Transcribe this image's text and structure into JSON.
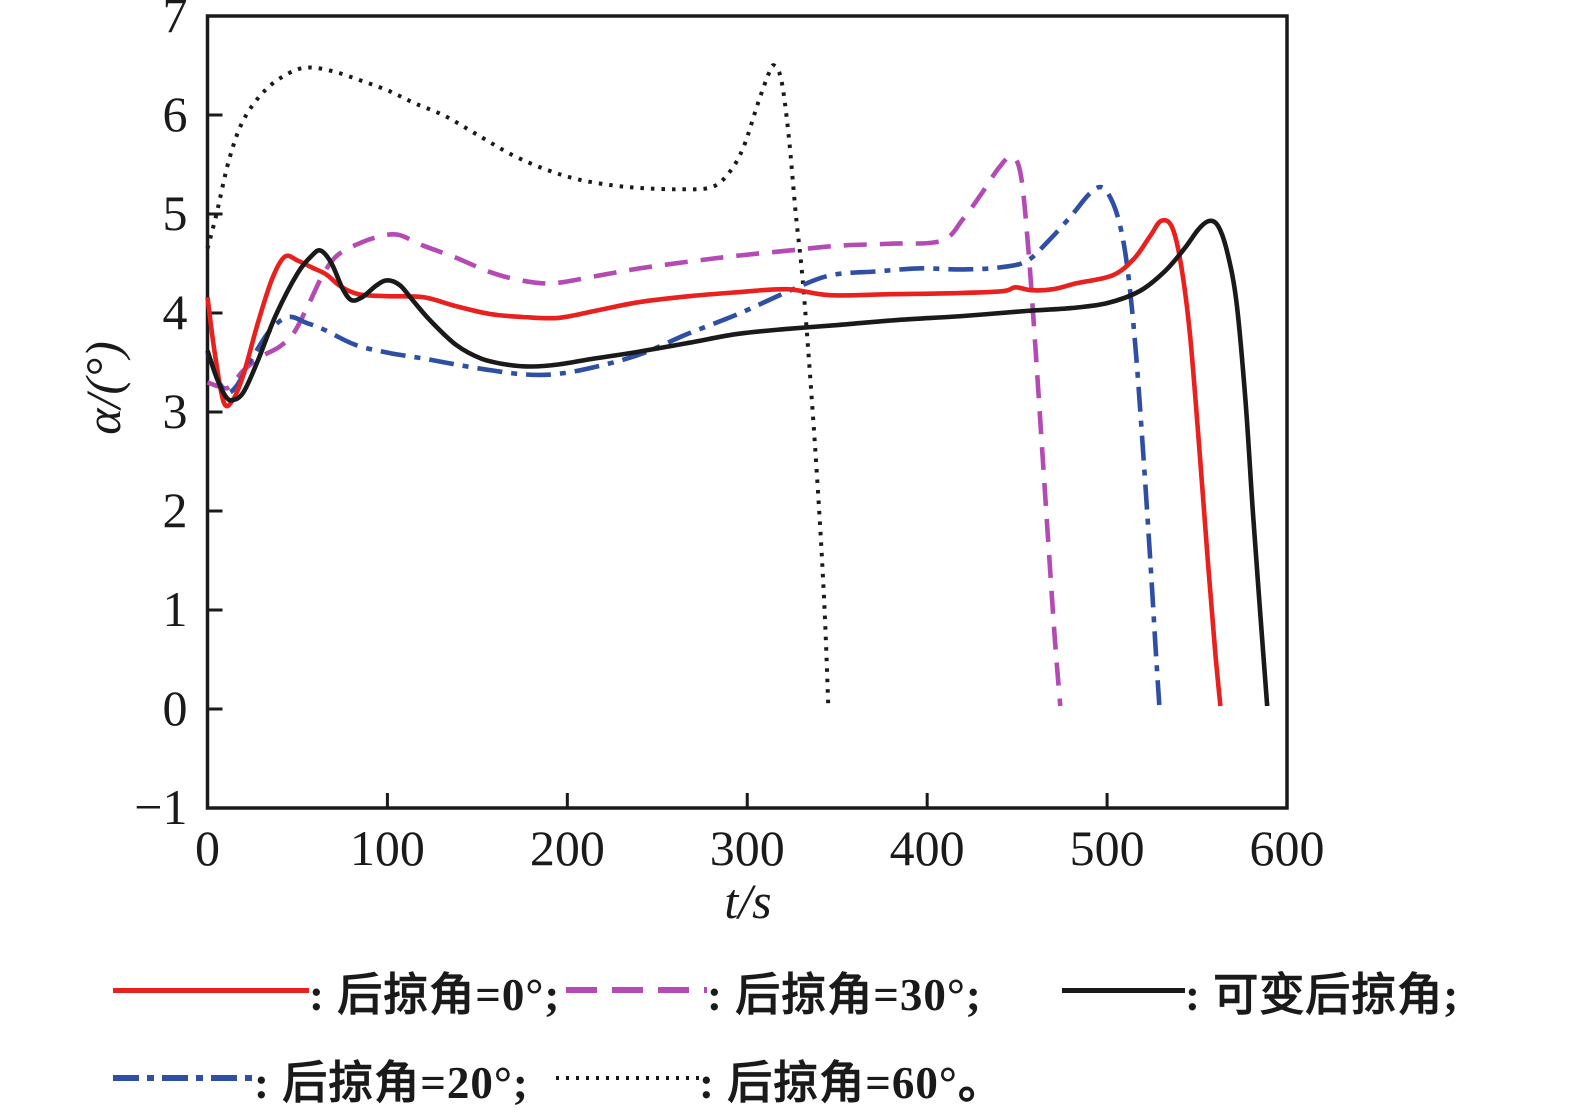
{
  "chart_data": {
    "type": "line",
    "title": "",
    "xlabel": "t/s",
    "ylabel": "α/(°)",
    "xlim": [
      0,
      600
    ],
    "ylim": [
      -1,
      7
    ],
    "xticks": [
      0,
      100,
      200,
      300,
      400,
      500,
      600
    ],
    "yticks": [
      -1,
      0,
      1,
      2,
      3,
      4,
      5,
      6,
      7
    ],
    "grid": false,
    "frame": "box",
    "legend_position": "below",
    "axis_color": "#1a1a1a",
    "series": [
      {
        "name": "后掠角=60°",
        "color": "#1a1a1a",
        "line_style": "dotted",
        "points": [
          [
            0,
            4.65
          ],
          [
            5,
            5.0
          ],
          [
            12,
            5.55
          ],
          [
            20,
            5.95
          ],
          [
            32,
            6.25
          ],
          [
            45,
            6.42
          ],
          [
            56,
            6.48
          ],
          [
            70,
            6.44
          ],
          [
            85,
            6.35
          ],
          [
            100,
            6.25
          ],
          [
            115,
            6.12
          ],
          [
            132,
            5.99
          ],
          [
            150,
            5.8
          ],
          [
            169,
            5.6
          ],
          [
            188,
            5.45
          ],
          [
            206,
            5.35
          ],
          [
            225,
            5.29
          ],
          [
            243,
            5.26
          ],
          [
            262,
            5.25
          ],
          [
            280,
            5.27
          ],
          [
            290,
            5.42
          ],
          [
            298,
            5.68
          ],
          [
            306,
            6.12
          ],
          [
            312,
            6.42
          ],
          [
            315,
            6.5
          ],
          [
            319,
            6.35
          ],
          [
            323,
            5.8
          ],
          [
            327,
            5.0
          ],
          [
            331,
            4.3
          ],
          [
            336,
            3.1
          ],
          [
            340,
            2.0
          ],
          [
            343,
            1.0
          ],
          [
            345,
            0.05
          ]
        ]
      },
      {
        "name": "后掠角=30°",
        "color": "#b44bb4",
        "line_style": "dashed",
        "points": [
          [
            0,
            3.3
          ],
          [
            6,
            3.26
          ],
          [
            12,
            3.25
          ],
          [
            20,
            3.42
          ],
          [
            30,
            3.56
          ],
          [
            40,
            3.66
          ],
          [
            48,
            3.8
          ],
          [
            56,
            4.08
          ],
          [
            64,
            4.38
          ],
          [
            72,
            4.58
          ],
          [
            84,
            4.7
          ],
          [
            95,
            4.77
          ],
          [
            106,
            4.79
          ],
          [
            120,
            4.68
          ],
          [
            138,
            4.56
          ],
          [
            156,
            4.42
          ],
          [
            174,
            4.33
          ],
          [
            192,
            4.3
          ],
          [
            215,
            4.37
          ],
          [
            240,
            4.45
          ],
          [
            268,
            4.52
          ],
          [
            295,
            4.58
          ],
          [
            323,
            4.63
          ],
          [
            351,
            4.68
          ],
          [
            380,
            4.7
          ],
          [
            408,
            4.73
          ],
          [
            420,
            4.95
          ],
          [
            430,
            5.2
          ],
          [
            440,
            5.47
          ],
          [
            447,
            5.58
          ],
          [
            452,
            5.4
          ],
          [
            456,
            4.7
          ],
          [
            460,
            3.7
          ],
          [
            464,
            2.6
          ],
          [
            468,
            1.5
          ],
          [
            471,
            0.7
          ],
          [
            474,
            0.03
          ]
        ]
      },
      {
        "name": "后掠角=20°",
        "color": "#2e4fa3",
        "line_style": "dashdot",
        "points": [
          [
            0,
            3.6
          ],
          [
            5,
            3.38
          ],
          [
            10,
            3.2
          ],
          [
            16,
            3.26
          ],
          [
            25,
            3.55
          ],
          [
            35,
            3.83
          ],
          [
            45,
            3.96
          ],
          [
            55,
            3.9
          ],
          [
            65,
            3.83
          ],
          [
            82,
            3.68
          ],
          [
            100,
            3.6
          ],
          [
            120,
            3.54
          ],
          [
            138,
            3.48
          ],
          [
            158,
            3.42
          ],
          [
            176,
            3.38
          ],
          [
            192,
            3.38
          ],
          [
            212,
            3.44
          ],
          [
            240,
            3.58
          ],
          [
            267,
            3.79
          ],
          [
            295,
            3.99
          ],
          [
            323,
            4.22
          ],
          [
            346,
            4.38
          ],
          [
            372,
            4.42
          ],
          [
            395,
            4.45
          ],
          [
            420,
            4.44
          ],
          [
            440,
            4.46
          ],
          [
            455,
            4.52
          ],
          [
            467,
            4.72
          ],
          [
            480,
            4.98
          ],
          [
            490,
            5.2
          ],
          [
            497,
            5.27
          ],
          [
            503,
            5.12
          ],
          [
            508,
            4.82
          ],
          [
            512,
            4.35
          ],
          [
            516,
            3.6
          ],
          [
            520,
            2.6
          ],
          [
            524,
            1.5
          ],
          [
            527,
            0.6
          ],
          [
            529,
            0.04
          ]
        ]
      },
      {
        "name": "后掠角=0°",
        "color": "#e8201e",
        "line_style": "solid",
        "points": [
          [
            0,
            4.16
          ],
          [
            4,
            3.6
          ],
          [
            9,
            3.1
          ],
          [
            14,
            3.12
          ],
          [
            20,
            3.38
          ],
          [
            28,
            3.9
          ],
          [
            36,
            4.35
          ],
          [
            43,
            4.57
          ],
          [
            50,
            4.53
          ],
          [
            58,
            4.46
          ],
          [
            66,
            4.39
          ],
          [
            74,
            4.27
          ],
          [
            84,
            4.19
          ],
          [
            100,
            4.17
          ],
          [
            120,
            4.16
          ],
          [
            138,
            4.07
          ],
          [
            157,
            3.99
          ],
          [
            175,
            3.96
          ],
          [
            195,
            3.95
          ],
          [
            215,
            4.02
          ],
          [
            240,
            4.11
          ],
          [
            268,
            4.17
          ],
          [
            295,
            4.21
          ],
          [
            322,
            4.24
          ],
          [
            346,
            4.18
          ],
          [
            380,
            4.19
          ],
          [
            415,
            4.2
          ],
          [
            442,
            4.22
          ],
          [
            449,
            4.26
          ],
          [
            458,
            4.23
          ],
          [
            470,
            4.24
          ],
          [
            483,
            4.3
          ],
          [
            503,
            4.38
          ],
          [
            515,
            4.55
          ],
          [
            524,
            4.78
          ],
          [
            530,
            4.93
          ],
          [
            536,
            4.87
          ],
          [
            541,
            4.5
          ],
          [
            546,
            3.8
          ],
          [
            551,
            2.7
          ],
          [
            556,
            1.5
          ],
          [
            560,
            0.6
          ],
          [
            563,
            0.03
          ]
        ]
      },
      {
        "name": "可变后掠角",
        "color": "#1a1a1a",
        "line_style": "solid",
        "points": [
          [
            0,
            3.62
          ],
          [
            5,
            3.35
          ],
          [
            10,
            3.16
          ],
          [
            14,
            3.12
          ],
          [
            20,
            3.2
          ],
          [
            28,
            3.52
          ],
          [
            38,
            3.98
          ],
          [
            50,
            4.4
          ],
          [
            58,
            4.58
          ],
          [
            63,
            4.63
          ],
          [
            69,
            4.5
          ],
          [
            75,
            4.25
          ],
          [
            80,
            4.13
          ],
          [
            86,
            4.16
          ],
          [
            94,
            4.28
          ],
          [
            100,
            4.33
          ],
          [
            107,
            4.28
          ],
          [
            114,
            4.13
          ],
          [
            124,
            3.92
          ],
          [
            138,
            3.68
          ],
          [
            152,
            3.54
          ],
          [
            166,
            3.48
          ],
          [
            180,
            3.46
          ],
          [
            195,
            3.48
          ],
          [
            215,
            3.54
          ],
          [
            240,
            3.61
          ],
          [
            268,
            3.7
          ],
          [
            295,
            3.79
          ],
          [
            323,
            3.84
          ],
          [
            351,
            3.88
          ],
          [
            384,
            3.93
          ],
          [
            420,
            3.97
          ],
          [
            455,
            4.02
          ],
          [
            480,
            4.05
          ],
          [
            500,
            4.1
          ],
          [
            518,
            4.22
          ],
          [
            532,
            4.42
          ],
          [
            543,
            4.65
          ],
          [
            551,
            4.85
          ],
          [
            557,
            4.93
          ],
          [
            562,
            4.87
          ],
          [
            567,
            4.6
          ],
          [
            572,
            4.1
          ],
          [
            577,
            3.1
          ],
          [
            581,
            2.0
          ],
          [
            585,
            1.0
          ],
          [
            589,
            0.03
          ]
        ]
      }
    ]
  },
  "legend": {
    "items": [
      {
        "series": 3,
        "label": ": 后掠角=0°;"
      },
      {
        "series": 1,
        "label": ": 后掠角=30°;"
      },
      {
        "series": 4,
        "label": ": 可变后掠角;"
      },
      {
        "series": 2,
        "label": ": 后掠角=20°;"
      },
      {
        "series": 0,
        "label": ": 后掠角=60°。"
      }
    ]
  }
}
